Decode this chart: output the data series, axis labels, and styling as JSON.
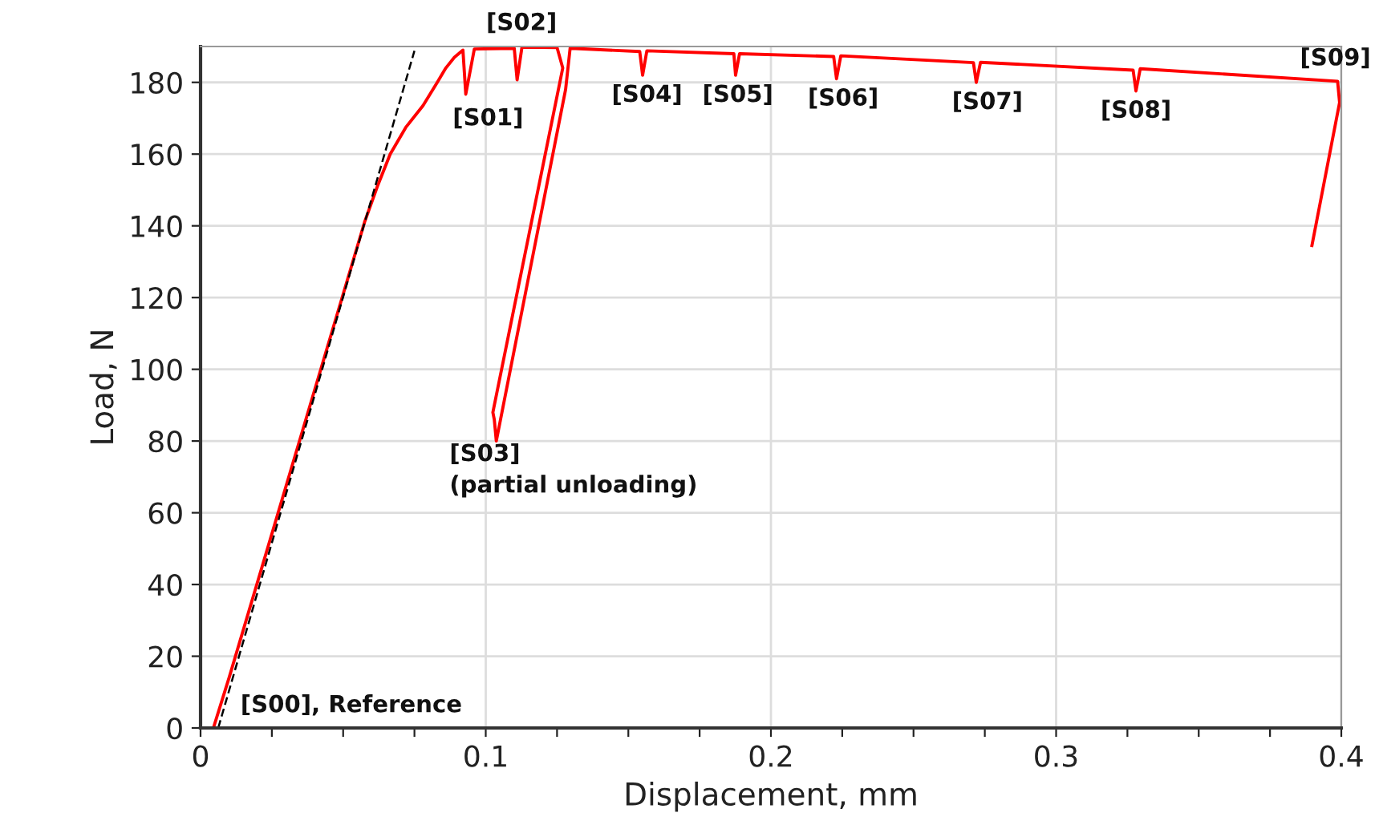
{
  "chart_data": {
    "type": "line",
    "xlabel": "Displacement, mm",
    "ylabel": "Load, N",
    "xlim": [
      0,
      0.4
    ],
    "ylim": [
      0,
      190
    ],
    "xticks": [
      0,
      {
        "value": 0.025,
        "label": null
      },
      {
        "value": 0.05,
        "label": null
      },
      {
        "value": 0.075,
        "label": null
      },
      0.1,
      {
        "value": 0.125,
        "label": null
      },
      {
        "value": 0.15,
        "label": null
      },
      {
        "value": 0.175,
        "label": null
      },
      0.2,
      {
        "value": 0.225,
        "label": null
      },
      {
        "value": 0.25,
        "label": null
      },
      {
        "value": 0.275,
        "label": null
      },
      0.3,
      {
        "value": 0.325,
        "label": null
      },
      {
        "value": 0.35,
        "label": null
      },
      {
        "value": 0.375,
        "label": null
      },
      0.4
    ],
    "yticks": [
      0,
      20,
      40,
      60,
      80,
      100,
      120,
      140,
      160,
      180
    ],
    "grid": true,
    "marker": "none",
    "series": [
      {
        "color": "#ff0000",
        "line_style": "solid",
        "x": [
          0,
          0.0045,
          0.01,
          0.0575,
          0.062,
          0.0665,
          0.072,
          0.078,
          0.083,
          0.086,
          0.089,
          0.092,
          0.093,
          0.096,
          0.11,
          0.111,
          0.1127,
          0.125,
          0.127,
          0.1025,
          0.103,
          0.1037,
          0.128,
          0.1296,
          0.13,
          0.154,
          0.155,
          0.1565,
          0.187,
          0.1876,
          0.189,
          0.222,
          0.223,
          0.2245,
          0.271,
          0.272,
          0.2735,
          0.327,
          0.328,
          0.3295,
          0.3987,
          0.3994,
          0.3897
        ],
        "values": [
          0,
          0,
          14,
          141,
          151,
          160,
          167.5,
          173.5,
          180,
          184,
          187,
          189,
          176.7,
          189.3,
          189.5,
          180.7,
          189.8,
          189.7,
          184,
          88,
          86,
          80,
          178,
          189.6,
          189.5,
          188.6,
          182,
          188.8,
          188,
          182,
          188,
          187.2,
          181,
          187.4,
          185.5,
          180,
          185.6,
          183.4,
          177.6,
          183.8,
          180.3,
          174.4,
          134.5
        ]
      },
      {
        "color": "#000000",
        "line_style": "dashed",
        "x": [
          0.0062,
          0.075
        ],
        "values": [
          0,
          188.8
        ]
      }
    ],
    "annotations": [
      {
        "text": "[S00], Reference",
        "x": 0.0062,
        "y": 0
      },
      {
        "text": "[S01]",
        "x": 0.093,
        "y": 176.7
      },
      {
        "text": "[S02]",
        "x": 0.111,
        "y": 189.5
      },
      {
        "text": "[S03]\n(partial unloading)",
        "x": 0.1037,
        "y": 80
      },
      {
        "text": "[S04]",
        "x": 0.155,
        "y": 182
      },
      {
        "text": "[S05]",
        "x": 0.1876,
        "y": 182
      },
      {
        "text": "[S06]",
        "x": 0.223,
        "y": 181
      },
      {
        "text": "[S07]",
        "x": 0.272,
        "y": 180
      },
      {
        "text": "[S08]",
        "x": 0.328,
        "y": 177.6
      },
      {
        "text": "[S09]",
        "x": 0.3987,
        "y": 180.3
      }
    ]
  }
}
